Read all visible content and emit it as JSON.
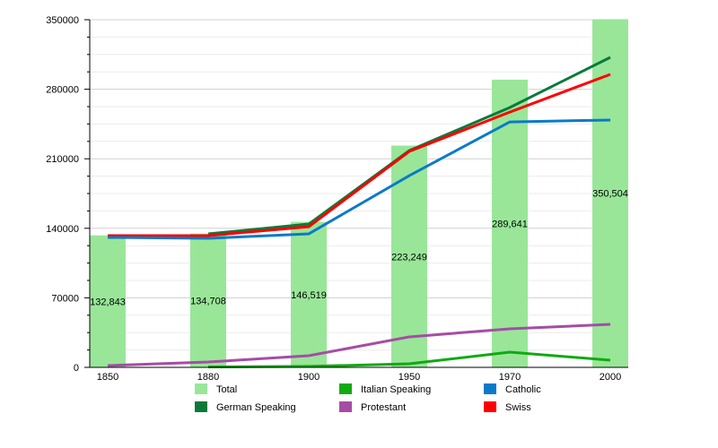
{
  "chart_data": {
    "type": "bar+line",
    "categories": [
      "1850",
      "1880",
      "1900",
      "1950",
      "1970",
      "2000"
    ],
    "ylim": [
      0,
      350000
    ],
    "yticks": [
      "0",
      "70000",
      "140000",
      "210000",
      "280000",
      "350000"
    ],
    "grid": true,
    "legend_position": "bottom",
    "bar_series": {
      "name": "Total",
      "color": "#99e699",
      "values": [
        132843,
        134708,
        146519,
        223249,
        289641,
        350504
      ],
      "labels": [
        "132,843",
        "134,708",
        "146,519",
        "223,249",
        "289,641",
        "350,504"
      ]
    },
    "line_series": [
      {
        "name": "German Speaking",
        "color": "#0a7a3a",
        "values": [
          null,
          134400,
          144300,
          218300,
          261600,
          312100
        ]
      },
      {
        "name": "Swiss",
        "color": "#ff0000",
        "values": [
          132600,
          132600,
          141600,
          217400,
          257000,
          295000
        ]
      },
      {
        "name": "Catholic",
        "color": "#0a7ac8",
        "values": [
          130800,
          129900,
          134400,
          193000,
          247100,
          249000
        ]
      },
      {
        "name": "Protestant",
        "color": "#a64ca6",
        "values": [
          1800,
          5400,
          11700,
          30700,
          38800,
          43300
        ]
      },
      {
        "name": "Italian Speaking",
        "color": "#11aa11",
        "values": [
          null,
          500,
          1000,
          3600,
          15300,
          7200
        ]
      }
    ],
    "legend": [
      {
        "name": "Total",
        "color": "#99e699"
      },
      {
        "name": "Italian Speaking",
        "color": "#11aa11"
      },
      {
        "name": "Catholic",
        "color": "#0a7ac8"
      },
      {
        "name": "German Speaking",
        "color": "#0a7a3a"
      },
      {
        "name": "Protestant",
        "color": "#a64ca6"
      },
      {
        "name": "Swiss",
        "color": "#ff0000"
      }
    ]
  }
}
